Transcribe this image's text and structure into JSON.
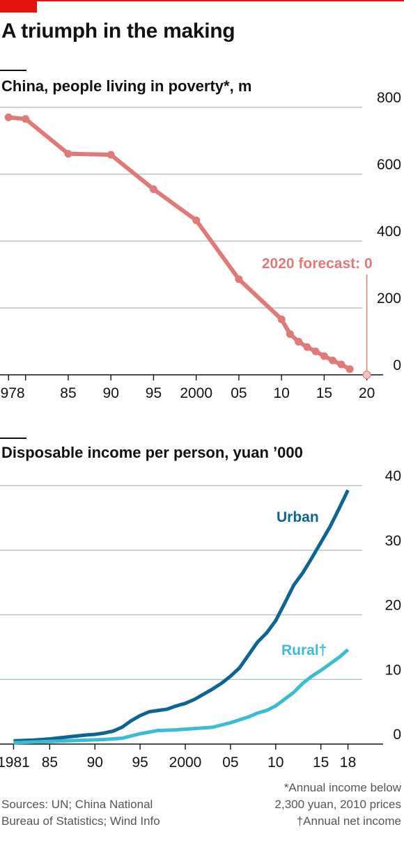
{
  "header": {
    "headline": "A triumph in the making"
  },
  "colors": {
    "brand_red": "#e3120b",
    "poverty_line": "#e07a78",
    "urban": "#0e6592",
    "rural": "#3bbcd2",
    "grid": "#b7c5cc"
  },
  "chart_data": [
    {
      "type": "line",
      "title": "China, people living in poverty*, m",
      "xlabel": "",
      "ylabel": "",
      "xlim": [
        1977,
        2021.5
      ],
      "ylim": [
        0,
        800
      ],
      "y_ticks": [
        0,
        200,
        400,
        600,
        800
      ],
      "x_ticks": [
        1978,
        1980,
        1985,
        1990,
        1995,
        2000,
        2005,
        2010,
        2015,
        2020
      ],
      "x_tick_labels": [
        "1978",
        "",
        "85",
        "90",
        "95",
        "2000",
        "05",
        "10",
        "15",
        "20"
      ],
      "grid": true,
      "series": [
        {
          "x": [
            1978,
            1980,
            1985,
            1990,
            1995,
            2000,
            2005,
            2010,
            2011,
            2012,
            2013,
            2014,
            2015,
            2016,
            2017,
            2018
          ],
          "y": [
            770,
            765,
            661,
            658,
            555,
            462,
            286,
            166,
            122,
            99,
            83,
            70,
            56,
            43,
            31,
            17
          ]
        }
      ],
      "forecast": {
        "x": 2020,
        "y": 0,
        "label": "2020 forecast: 0"
      }
    },
    {
      "type": "line",
      "title": "Disposable income per person, yuan ’000",
      "xlabel": "",
      "ylabel": "",
      "xlim": [
        1979.5,
        2021.5
      ],
      "ylim": [
        0,
        40
      ],
      "y_ticks": [
        0,
        10,
        20,
        30,
        40
      ],
      "x_ticks": [
        1981,
        1985,
        1990,
        1995,
        2000,
        2005,
        2010,
        2015,
        2018
      ],
      "x_tick_labels": [
        "1981",
        "85",
        "90",
        "95",
        "2000",
        "05",
        "10",
        "15",
        "18"
      ],
      "grid": true,
      "series": [
        {
          "name": "Urban",
          "x": [
            1981,
            1983,
            1985,
            1987,
            1989,
            1990,
            1991,
            1992,
            1993,
            1994,
            1995,
            1996,
            1997,
            1998,
            1999,
            2000,
            2001,
            2002,
            2003,
            2004,
            2005,
            2006,
            2007,
            2008,
            2009,
            2010,
            2011,
            2012,
            2013,
            2014,
            2015,
            2016,
            2017,
            2018
          ],
          "y": [
            0.5,
            0.6,
            0.8,
            1.1,
            1.4,
            1.5,
            1.7,
            2.0,
            2.6,
            3.6,
            4.4,
            5.0,
            5.2,
            5.4,
            5.9,
            6.3,
            6.9,
            7.7,
            8.5,
            9.4,
            10.5,
            11.8,
            13.8,
            15.8,
            17.2,
            19.1,
            21.8,
            24.6,
            26.5,
            28.8,
            31.2,
            33.6,
            36.4,
            39.3
          ]
        },
        {
          "name": "Rural†",
          "x": [
            1981,
            1985,
            1989,
            1991,
            1993,
            1995,
            1997,
            1999,
            2001,
            2003,
            2005,
            2007,
            2008,
            2009,
            2010,
            2012,
            2013,
            2014,
            2015,
            2016,
            2017,
            2018
          ],
          "y": [
            0.2,
            0.4,
            0.6,
            0.7,
            0.9,
            1.6,
            2.1,
            2.2,
            2.4,
            2.6,
            3.3,
            4.2,
            4.8,
            5.2,
            5.9,
            8.0,
            9.4,
            10.5,
            11.4,
            12.4,
            13.4,
            14.6
          ]
        }
      ]
    }
  ],
  "footer": {
    "sources_line1": "Sources: UN; China National",
    "sources_line2": "Bureau of Statistics; Wind Info",
    "note_line1": "*Annual income below",
    "note_line2": "2,300 yuan, 2010 prices",
    "note_line3": "†Annual net income"
  }
}
